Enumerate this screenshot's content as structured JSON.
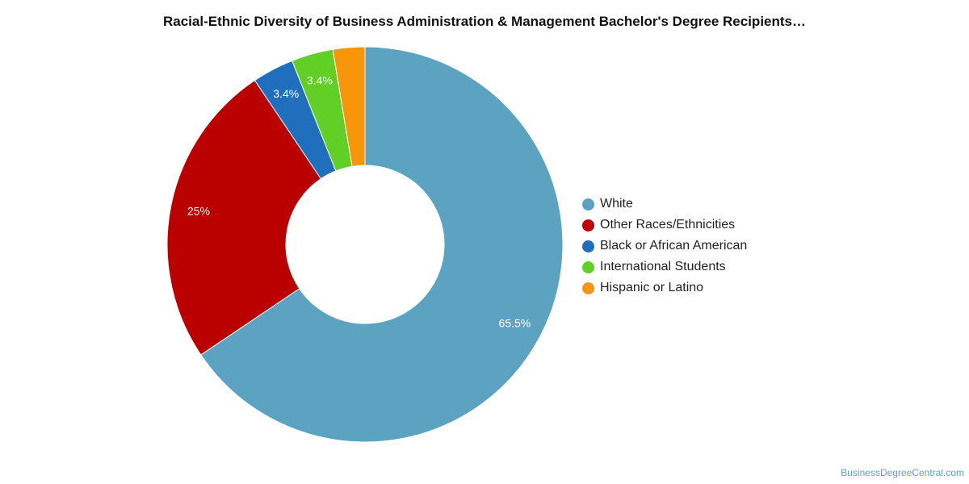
{
  "chart_data": {
    "type": "pie",
    "title": "Racial-Ethnic Diversity of Business Administration & Management Bachelor's Degree Recipients…",
    "slices": [
      {
        "label": "White",
        "value": 65.5,
        "display": "65.5%",
        "color": "#5ba3c0"
      },
      {
        "label": "Other Races/Ethnicities",
        "value": 25,
        "display": "25%",
        "color": "#bb0000"
      },
      {
        "label": "Black or African American",
        "value": 3.4,
        "display": "3.4%",
        "color": "#1f6fbc"
      },
      {
        "label": "International Students",
        "value": 3.4,
        "display": "3.4%",
        "color": "#62cf26"
      },
      {
        "label": "Hispanic or Latino",
        "value": 2.6,
        "display": "",
        "color": "#f7960b"
      }
    ],
    "legend_position": "right"
  },
  "credit": "BusinessDegreeCentral.com"
}
